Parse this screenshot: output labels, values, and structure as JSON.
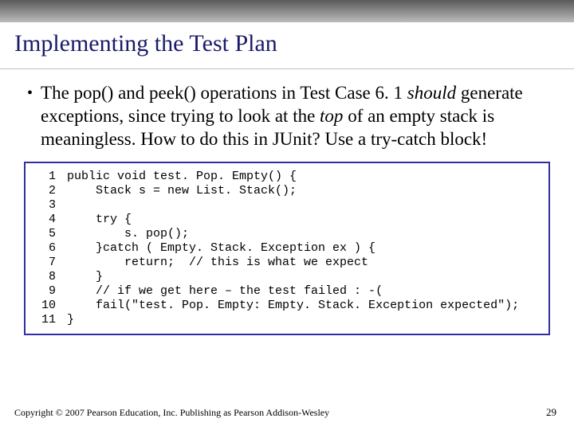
{
  "title": "Implementing the Test Plan",
  "bullet": {
    "pre": "The pop() and peek() operations in Test Case 6. 1 ",
    "should": "should",
    "mid1": " generate exceptions, since trying to look at the ",
    "top": "top",
    "post": " of an empty stack is meaningless. How to do this in JUnit? Use a try-catch block!"
  },
  "code": {
    "border_color": "#3030a0",
    "font_family": "Courier New",
    "lines": [
      {
        "n": "1",
        "t": "public void test. Pop. Empty() {"
      },
      {
        "n": "2",
        "t": "    Stack s = new List. Stack();"
      },
      {
        "n": "3",
        "t": ""
      },
      {
        "n": "4",
        "t": "    try {"
      },
      {
        "n": "5",
        "t": "        s. pop();"
      },
      {
        "n": "6",
        "t": "    }catch ( Empty. Stack. Exception ex ) {"
      },
      {
        "n": "7",
        "t": "        return;  // this is what we expect"
      },
      {
        "n": "8",
        "t": "    }"
      },
      {
        "n": "9",
        "t": "    // if we get here – the test failed : -("
      },
      {
        "n": "10",
        "t": "    fail(\"test. Pop. Empty: Empty. Stack. Exception expected\");"
      },
      {
        "n": "11",
        "t": "}"
      }
    ]
  },
  "footer": "Copyright © 2007 Pearson Education, Inc. Publishing as Pearson Addison-Wesley",
  "page_number": "29",
  "colors": {
    "title_color": "#1a1a6a",
    "background": "#ffffff",
    "topbar_gradient": [
      "#5a5a5a",
      "#8a8a8a",
      "#bcbcbc"
    ]
  }
}
